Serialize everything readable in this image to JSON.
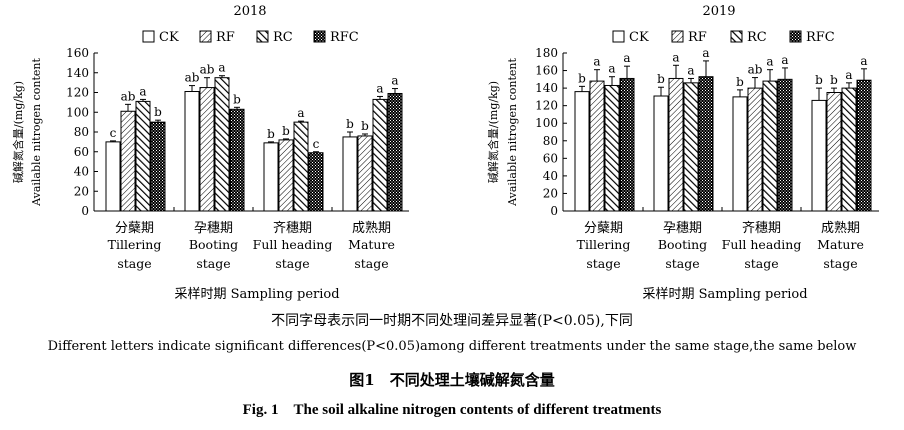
{
  "chart_data": [
    {
      "type": "bar",
      "title": "2018",
      "ylabel_cn": "碱解氮含量/(mg/kg)",
      "ylabel_en": "Available nitrogen content",
      "xlabel": "采样时期 Sampling period",
      "ylim": [
        0,
        160
      ],
      "yticks": [
        0,
        20,
        40,
        60,
        80,
        100,
        120,
        140,
        160
      ],
      "categories": [
        {
          "cn": "分蘖期",
          "en1": "Tillering",
          "en2": "stage"
        },
        {
          "cn": "孕穗期",
          "en1": "Booting",
          "en2": "stage"
        },
        {
          "cn": "齐穗期",
          "en1": "Full heading",
          "en2": "stage"
        },
        {
          "cn": "成熟期",
          "en1": "Mature",
          "en2": "stage"
        }
      ],
      "series": [
        {
          "name": "CK",
          "values": [
            70,
            121,
            69,
            75
          ],
          "errors": [
            1,
            6,
            1,
            5
          ],
          "letters": [
            "c",
            "ab",
            "b",
            "b"
          ]
        },
        {
          "name": "RF",
          "values": [
            101,
            125,
            72,
            76
          ],
          "errors": [
            7,
            10,
            1,
            2
          ],
          "letters": [
            "ab",
            "ab",
            "b",
            "b"
          ]
        },
        {
          "name": "RC",
          "values": [
            111,
            135,
            90,
            113
          ],
          "errors": [
            2,
            2,
            1,
            3
          ],
          "letters": [
            "a",
            "a",
            "a",
            "a"
          ]
        },
        {
          "name": "RFC",
          "values": [
            90,
            103,
            59,
            119
          ],
          "errors": [
            2,
            2,
            1,
            5
          ],
          "letters": [
            "b",
            "b",
            "c",
            "a"
          ]
        }
      ]
    },
    {
      "type": "bar",
      "title": "2019",
      "ylabel_cn": "碱解氮含量/(mg/kg)",
      "ylabel_en": "Available nitrogen content",
      "xlabel": "采样时期 Sampling period",
      "ylim": [
        0,
        180
      ],
      "yticks": [
        0,
        20,
        40,
        60,
        80,
        100,
        120,
        140,
        160,
        180
      ],
      "categories": [
        {
          "cn": "分蘖期",
          "en1": "Tillering",
          "en2": "stage"
        },
        {
          "cn": "孕穗期",
          "en1": "Booting",
          "en2": "stage"
        },
        {
          "cn": "齐穗期",
          "en1": "Full heading",
          "en2": "stage"
        },
        {
          "cn": "成熟期",
          "en1": "Mature",
          "en2": "stage"
        }
      ],
      "series": [
        {
          "name": "CK",
          "values": [
            136,
            131,
            130,
            126
          ],
          "errors": [
            6,
            10,
            8,
            14
          ],
          "letters": [
            "b",
            "b",
            "b",
            "b"
          ]
        },
        {
          "name": "RF",
          "values": [
            148,
            151,
            140,
            135
          ],
          "errors": [
            13,
            15,
            12,
            5
          ],
          "letters": [
            "a",
            "a",
            "ab",
            "b"
          ]
        },
        {
          "name": "RC",
          "values": [
            143,
            146,
            148,
            140
          ],
          "errors": [
            10,
            5,
            13,
            6
          ],
          "letters": [
            "a",
            "a",
            "a",
            "a"
          ]
        },
        {
          "name": "RFC",
          "values": [
            151,
            153,
            150,
            149
          ],
          "errors": [
            14,
            18,
            13,
            13
          ],
          "letters": [
            "a",
            "a",
            "a",
            "a"
          ]
        }
      ]
    }
  ],
  "captions": {
    "note_cn": "不同字母表示同一时期不同处理间差异显著(P<0.05),下同",
    "note_en": "Different letters indicate significant differences(P<0.05)among different treatments under the same stage,the same below",
    "fig_cn": "图1　不同处理土壤碱解氮含量",
    "fig_en": "Fig. 1　The soil alkaline nitrogen contents of different treatments"
  }
}
